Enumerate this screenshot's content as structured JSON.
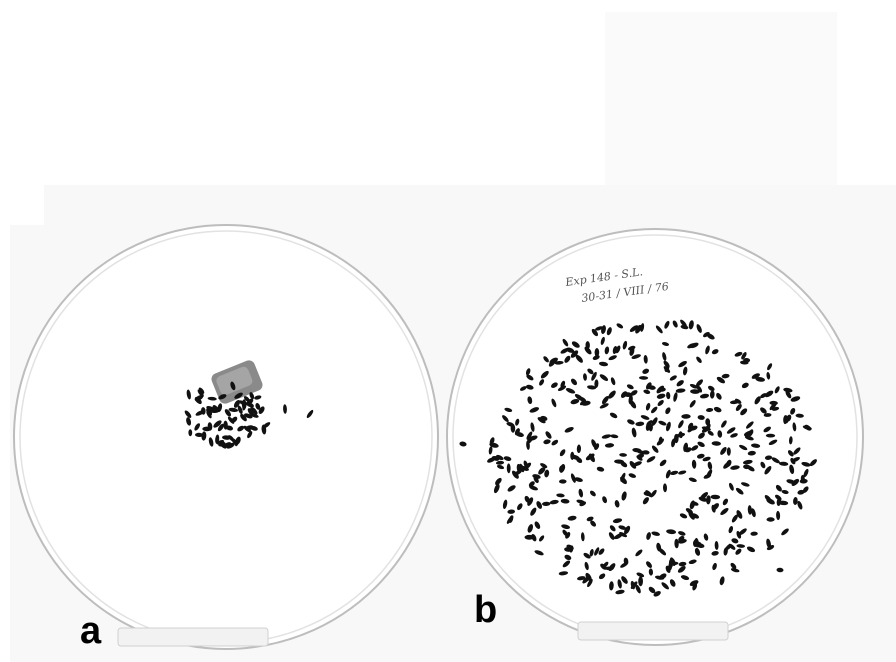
{
  "panels": [
    {
      "label": "a"
    },
    {
      "label": "b",
      "note_line1": "Exp 148 - S.L.",
      "note_line2": "30-31 / VIII / 76"
    }
  ]
}
